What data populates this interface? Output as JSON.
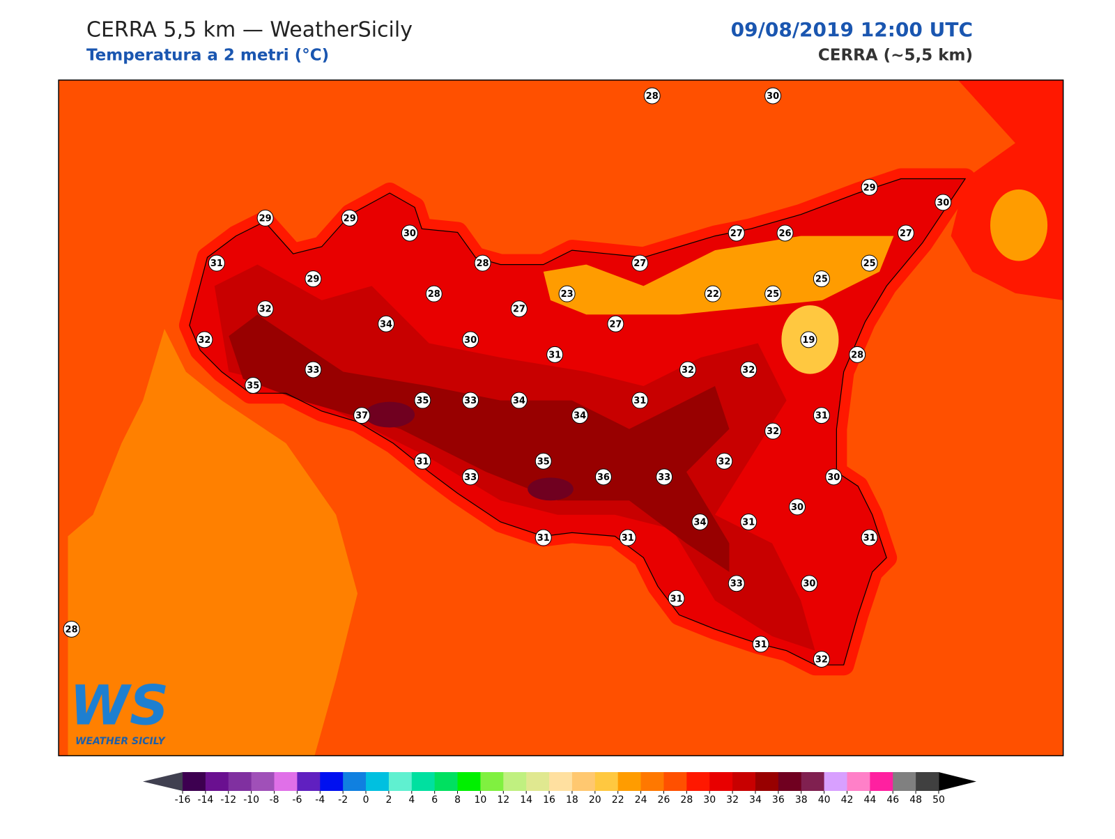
{
  "header": {
    "title": "CERRA 5,5 km — WeatherSicily",
    "subtitle": "Temperatura a 2 metri (°C)",
    "datetime": "09/08/2019 12:00 UTC",
    "model": "CERRA (~5,5 km)"
  },
  "logo": {
    "mark": "WS",
    "name": "WEATHER SICILY"
  },
  "stations": [
    28,
    30,
    29,
    30,
    29,
    29,
    30,
    27,
    26,
    27,
    31,
    29,
    28,
    27,
    25,
    25,
    28,
    23,
    22,
    25,
    32,
    27,
    34,
    27,
    32,
    30,
    19,
    28,
    31,
    33,
    32,
    32,
    35,
    35,
    33,
    34,
    31,
    37,
    34,
    31,
    32,
    31,
    35,
    32,
    33,
    36,
    33,
    30,
    30,
    34,
    31,
    31,
    31,
    31,
    33,
    30,
    31,
    28,
    31,
    32
  ],
  "colorbar": {
    "ticks": [
      -16,
      -14,
      -12,
      -10,
      -8,
      -6,
      -4,
      -2,
      0,
      2,
      4,
      6,
      8,
      10,
      12,
      14,
      16,
      18,
      20,
      22,
      24,
      26,
      28,
      30,
      32,
      34,
      36,
      38,
      40,
      42,
      44,
      46,
      48,
      50
    ],
    "colors": [
      "#3d0050",
      "#6a1090",
      "#8030a0",
      "#a050b8",
      "#e070e8",
      "#6020c0",
      "#0010f0",
      "#1080e0",
      "#00c0e0",
      "#60f0d0",
      "#00e0a0",
      "#00e060",
      "#00f000",
      "#80f040",
      "#c0f080",
      "#e0e890",
      "#ffe0a0",
      "#ffc870",
      "#ffc840",
      "#ff9c00",
      "#ff7800",
      "#ff5000",
      "#ff1800",
      "#e80000",
      "#c80000",
      "#980000",
      "#700020",
      "#802050",
      "#d8a0ff",
      "#ff80c8",
      "#ff20a0",
      "#808080",
      "#404040"
    ],
    "under_color": "#404050",
    "over_color": "#000000"
  }
}
